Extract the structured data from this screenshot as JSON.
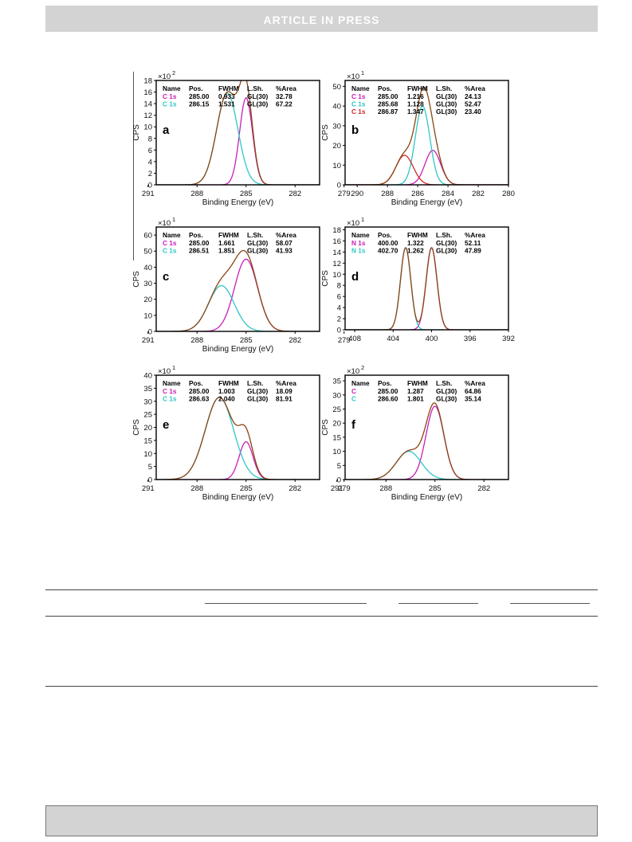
{
  "header": {
    "banner": "ARTICLE IN PRESS"
  },
  "colors": {
    "c1": "#c81fb8",
    "c2": "#2fc6c6",
    "c3": "#d22828",
    "envelope": "#8b4513"
  },
  "chart_data": [
    {
      "id": "a",
      "type": "line",
      "panel_label": "a",
      "xlabel": "Binding Energy (eV)",
      "ylabel": "CPS",
      "y_multiplier": "×10",
      "y_multiplier_exp": "2",
      "xlim": [
        290.5,
        280.5
      ],
      "x_reversed": true,
      "ylim": [
        0,
        18
      ],
      "xticks": [
        291,
        288,
        285,
        282,
        279
      ],
      "yticks": [
        0,
        2,
        4,
        6,
        8,
        10,
        12,
        14,
        16,
        18
      ],
      "legend_header": [
        "Name",
        "Pos.",
        "FWHM",
        "L.Sh.",
        "%Area"
      ],
      "series": [
        {
          "name": "C 1s",
          "pos": "285.00",
          "fwhm": "0.933",
          "lsh": "GL(30)",
          "area": "32.78",
          "color": "#c81fb8",
          "center": 285.0,
          "width": 0.933,
          "height": 15.0
        },
        {
          "name": "C 1s",
          "pos": "286.15",
          "fwhm": "1.531",
          "lsh": "GL(30)",
          "area": "67.22",
          "color": "#2fc6c6",
          "center": 286.15,
          "width": 1.531,
          "height": 15.8
        }
      ]
    },
    {
      "id": "b",
      "type": "line",
      "panel_label": "b",
      "xlabel": "Binding Energy (eV)",
      "ylabel": "CPS",
      "y_multiplier": "×10",
      "y_multiplier_exp": "1",
      "xlim": [
        290.8,
        280
      ],
      "x_reversed": true,
      "ylim": [
        0,
        53
      ],
      "xticks": [
        290,
        288,
        286,
        284,
        282,
        280
      ],
      "yticks": [
        0,
        10,
        20,
        30,
        40,
        50
      ],
      "legend_header": [
        "Name",
        "Pos.",
        "FWHM",
        "L.Sh.",
        "%Area"
      ],
      "series": [
        {
          "name": "C 1s",
          "pos": "285.00",
          "fwhm": "1.216",
          "lsh": "GL(30)",
          "area": "24.13",
          "color": "#c81fb8",
          "center": 285.0,
          "width": 1.216,
          "height": 17.5
        },
        {
          "name": "C 1s",
          "pos": "285.68",
          "fwhm": "1.128",
          "lsh": "GL(30)",
          "area": "52.47",
          "color": "#2fc6c6",
          "center": 285.68,
          "width": 1.128,
          "height": 40.0
        },
        {
          "name": "C 1s",
          "pos": "286.87",
          "fwhm": "1.347",
          "lsh": "GL(30)",
          "area": "23.40",
          "color": "#d22828",
          "center": 286.87,
          "width": 1.347,
          "height": 15.0
        }
      ]
    },
    {
      "id": "c",
      "type": "line",
      "panel_label": "c",
      "xlabel": "Binding Energy (eV)",
      "ylabel": "CPS",
      "y_multiplier": "×10",
      "y_multiplier_exp": "1",
      "xlim": [
        290.5,
        280.5
      ],
      "x_reversed": true,
      "ylim": [
        0,
        65
      ],
      "xticks": [
        291,
        288,
        285,
        282,
        279
      ],
      "yticks": [
        0,
        10,
        20,
        30,
        40,
        50,
        60
      ],
      "legend_header": [
        "Name",
        "Pos.",
        "FWHM",
        "L.Sh.",
        "%Area"
      ],
      "series": [
        {
          "name": "C 1s",
          "pos": "285.00",
          "fwhm": "1.661",
          "lsh": "GL(30)",
          "area": "58.07",
          "color": "#c81fb8",
          "center": 285.0,
          "width": 1.661,
          "height": 45.0
        },
        {
          "name": "C 1s",
          "pos": "286.51",
          "fwhm": "1.851",
          "lsh": "GL(30)",
          "area": "41.93",
          "color": "#2fc6c6",
          "center": 286.51,
          "width": 1.851,
          "height": 28.5
        }
      ]
    },
    {
      "id": "d",
      "type": "line",
      "panel_label": "d",
      "xlabel": "",
      "ylabel": "CPS",
      "y_multiplier": "×10",
      "y_multiplier_exp": "1",
      "xlim": [
        409,
        392
      ],
      "x_reversed": true,
      "ylim": [
        0,
        18.5
      ],
      "xticks": [
        408,
        404,
        400,
        396,
        392
      ],
      "yticks": [
        0,
        2,
        4,
        6,
        8,
        10,
        12,
        14,
        16,
        18
      ],
      "legend_header": [
        "Name",
        "Pos.",
        "FWHM",
        "L.Sh.",
        "%Area"
      ],
      "series": [
        {
          "name": "N 1s",
          "pos": "400.00",
          "fwhm": "1.322",
          "lsh": "GL(30)",
          "area": "52.11",
          "color": "#c81fb8",
          "center": 400.0,
          "width": 1.322,
          "height": 14.8
        },
        {
          "name": "N 1s",
          "pos": "402.70",
          "fwhm": "1.262",
          "lsh": "GL(30)",
          "area": "47.89",
          "color": "#2fc6c6",
          "center": 402.7,
          "width": 1.262,
          "height": 14.8
        }
      ]
    },
    {
      "id": "e",
      "type": "line",
      "panel_label": "e",
      "xlabel": "Binding Energy (eV)",
      "ylabel": "CPS",
      "y_multiplier": "×10",
      "y_multiplier_exp": "1",
      "xlim": [
        290.5,
        280.5
      ],
      "x_reversed": true,
      "ylim": [
        0,
        40
      ],
      "xticks": [
        291,
        288,
        285,
        282,
        279
      ],
      "yticks": [
        0,
        5,
        10,
        15,
        20,
        25,
        30,
        35,
        40
      ],
      "legend_header": [
        "Name",
        "Pos.",
        "FWHM",
        "L.Sh.",
        "%Area"
      ],
      "series": [
        {
          "name": "C 1s",
          "pos": "285.00",
          "fwhm": "1.003",
          "lsh": "GL(30)",
          "area": "18.09",
          "color": "#c81fb8",
          "center": 285.0,
          "width": 1.003,
          "height": 14.5
        },
        {
          "name": "C 1s",
          "pos": "286.63",
          "fwhm": "2.040",
          "lsh": "GL(30)",
          "area": "81.91",
          "color": "#2fc6c6",
          "center": 286.63,
          "width": 2.04,
          "height": 31.5
        }
      ]
    },
    {
      "id": "f",
      "type": "line",
      "panel_label": "f",
      "xlabel": "Binding Energy (eV)",
      "ylabel": "CPS",
      "y_multiplier": "×10",
      "y_multiplier_exp": "2",
      "xlim": [
        290.5,
        280.5
      ],
      "x_reversed": true,
      "ylim": [
        0,
        37
      ],
      "xticks": [
        291,
        288,
        285,
        282
      ],
      "yticks": [
        0,
        5,
        10,
        15,
        20,
        25,
        30,
        35
      ],
      "legend_header": [
        "Name",
        "Pos.",
        "FWHM",
        "L.Sh.",
        "%Area"
      ],
      "series": [
        {
          "name": "C",
          "pos": "285.00",
          "fwhm": "1.287",
          "lsh": "GL(30)",
          "area": "64.86",
          "color": "#c81fb8",
          "center": 285.0,
          "width": 1.287,
          "height": 26.0
        },
        {
          "name": "C",
          "pos": "286.60",
          "fwhm": "1.801",
          "lsh": "GL(30)",
          "area": "35.14",
          "color": "#2fc6c6",
          "center": 286.6,
          "width": 1.801,
          "height": 10.0
        }
      ]
    }
  ]
}
